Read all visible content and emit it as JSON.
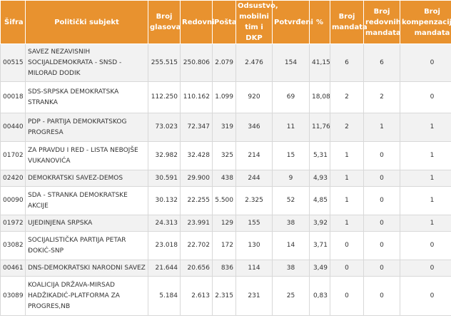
{
  "headers": [
    "Šifra",
    "Politički subjekt",
    "Broj glasova",
    "Redovni",
    "Pošta",
    "Odsustvo, mobilni tim i DKP",
    "Potvrđeni",
    "%",
    "Broj mandata",
    "Broj redovnih mandata",
    "Broj kompenzacijskih mandata"
  ],
  "rows": [
    [
      "00515",
      "SAVEZ NEZAVISNIH SOCIJALDEMOKRATA - SNSD - MILORAD DODIK",
      "255.515",
      "250.806",
      "2.079",
      "2.476",
      "154",
      "41,15",
      "6",
      "6",
      "0"
    ],
    [
      "00018",
      "SDS-SRPSKA DEMOKRATSKA STRANKA",
      "112.250",
      "110.162",
      "1.099",
      "920",
      "69",
      "18,08",
      "2",
      "2",
      "0"
    ],
    [
      "00440",
      "PDP - PARTIJA DEMOKRATSKOG PROGRESA",
      "73.023",
      "72.347",
      "319",
      "346",
      "11",
      "11,76",
      "2",
      "1",
      "1"
    ],
    [
      "01702",
      "ZA PRAVDU I RED - LISTA NEBOJŠE VUKANOVIĆA",
      "32.982",
      "32.428",
      "325",
      "214",
      "15",
      "5,31",
      "1",
      "0",
      "1"
    ],
    [
      "02420",
      "DEMOKRATSKI SAVEZ-DEMOS",
      "30.591",
      "29.900",
      "438",
      "244",
      "9",
      "4,93",
      "1",
      "0",
      "1"
    ],
    [
      "00090",
      "SDA - STRANKA DEMOKRATSKE AKCIJE",
      "30.132",
      "22.255",
      "5.500",
      "2.325",
      "52",
      "4,85",
      "1",
      "0",
      "1"
    ],
    [
      "01972",
      "UJEDINJENA SRPSKA",
      "24.313",
      "23.991",
      "129",
      "155",
      "38",
      "3,92",
      "1",
      "0",
      "1"
    ],
    [
      "03082",
      "SOCIJALISTIČKA PARTIJA PETAR ĐOKIĆ-SNP",
      "23.018",
      "22.702",
      "172",
      "130",
      "14",
      "3,71",
      "0",
      "0",
      "0"
    ],
    [
      "00461",
      "DNS-DEMOKRATSKI NARODNI SAVEZ",
      "21.644",
      "20.656",
      "836",
      "114",
      "38",
      "3,49",
      "0",
      "0",
      "0"
    ],
    [
      "03089",
      "KOALICIJA DRŽAVA-MIRSAD HADŽIKADIĆ-PLATFORMA ZA PROGRES,NB",
      "5.184",
      "2.613",
      "2.315",
      "231",
      "25",
      "0,83",
      "0",
      "0",
      "0"
    ]
  ]
}
